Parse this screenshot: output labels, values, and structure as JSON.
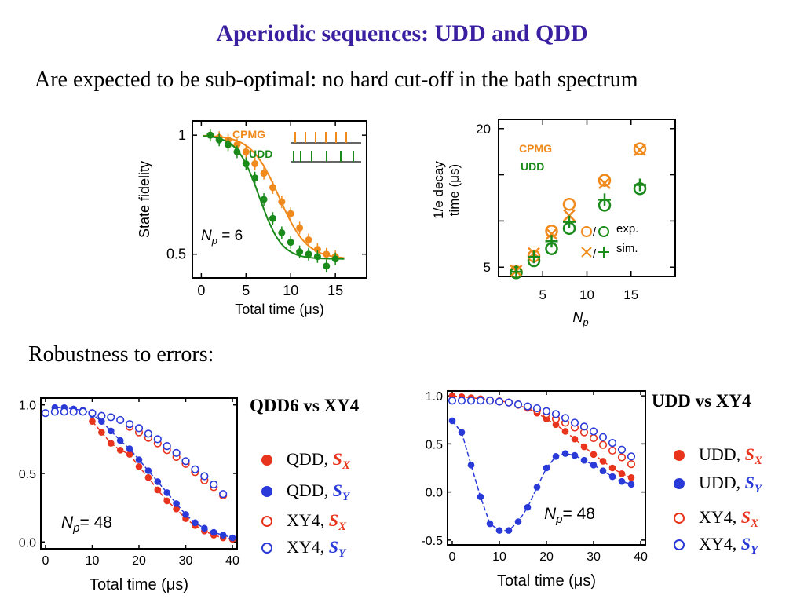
{
  "slide": {
    "title": "Aperiodic sequences: UDD and QDD",
    "subtitle": "Are expected to be sub-optimal: no hard cut-off in the bath spectrum",
    "section": "Robustness to errors:",
    "colors": {
      "title": "#3a1fa0",
      "orange": "#f08a1c",
      "green": "#1a8a1a",
      "red": "#e8341c",
      "blue": "#2a3ad8"
    }
  },
  "chart_data": [
    {
      "id": "fidelity",
      "type": "scatter",
      "xlabel": "Total time (μs)",
      "ylabel": "State fidelity",
      "xlim": [
        -1,
        18.5
      ],
      "ylim": [
        0.4,
        1.06
      ],
      "xticks": [
        "0",
        "5",
        "10",
        "15"
      ],
      "yticks": [
        "1",
        "0.5"
      ],
      "ytick_values": [
        1,
        0.5
      ],
      "annotation": "Np = 6",
      "legend": [
        "CPMG",
        "UDD"
      ],
      "series": [
        {
          "name": "CPMG",
          "color": "#f08a1c",
          "x": [
            1,
            2,
            3,
            4,
            5,
            6,
            7,
            8,
            9,
            10,
            11,
            12,
            13,
            14,
            15
          ],
          "y": [
            1.0,
            0.99,
            0.98,
            0.96,
            0.93,
            0.88,
            0.84,
            0.78,
            0.72,
            0.67,
            0.61,
            0.56,
            0.52,
            0.5,
            0.49
          ]
        },
        {
          "name": "UDD",
          "color": "#1a8a1a",
          "x": [
            1,
            2,
            3,
            4,
            5,
            6,
            7,
            8,
            9,
            10,
            11,
            12,
            13,
            14,
            15
          ],
          "y": [
            1.0,
            0.98,
            0.96,
            0.93,
            0.88,
            0.82,
            0.73,
            0.65,
            0.59,
            0.55,
            0.51,
            0.5,
            0.49,
            0.45,
            0.48
          ]
        }
      ]
    },
    {
      "id": "decay",
      "type": "scatter",
      "xlabel": "Np",
      "ylabel_line1": "1/e decay",
      "ylabel_line2": "time (μs)",
      "xlim": [
        0,
        20
      ],
      "ylim": [
        4,
        21
      ],
      "xticks": [
        "5",
        "10",
        "15"
      ],
      "yticks": [
        "20",
        "5"
      ],
      "legend_labels": [
        "CPMG",
        "UDD"
      ],
      "legend_exp": "exp.",
      "legend_sim": "sim.",
      "series": [
        {
          "name": "CPMG exp.",
          "color": "#f08a1c",
          "marker": "circle",
          "x": [
            2,
            4,
            6,
            8,
            12,
            16
          ],
          "y": [
            4.5,
            6.2,
            8.9,
            11.8,
            14.4,
            17.8
          ]
        },
        {
          "name": "UDD exp.",
          "color": "#1a8a1a",
          "marker": "circle",
          "x": [
            2,
            4,
            6,
            8,
            12,
            16
          ],
          "y": [
            4.4,
            5.7,
            7.0,
            9.2,
            11.7,
            13.5
          ]
        },
        {
          "name": "CPMG sim.",
          "color": "#f08a1c",
          "marker": "x",
          "x": [
            2,
            4,
            6,
            8,
            12,
            16
          ],
          "y": [
            4.6,
            6.5,
            8.6,
            10.6,
            14.1,
            17.7
          ]
        },
        {
          "name": "UDD sim.",
          "color": "#1a8a1a",
          "marker": "plus",
          "x": [
            2,
            4,
            6,
            8,
            12,
            16
          ],
          "y": [
            4.5,
            6.1,
            7.8,
            9.9,
            12.3,
            13.9
          ]
        }
      ]
    },
    {
      "id": "qdd",
      "type": "scatter",
      "title": "QDD6 vs XY4",
      "xlabel": "Total time (μs)",
      "xlim": [
        -1,
        41
      ],
      "ylim": [
        -0.05,
        1.05
      ],
      "xticks": [
        "0",
        "10",
        "20",
        "30",
        "40"
      ],
      "yticks": [
        "1.0",
        "0.5",
        "0.0"
      ],
      "ytick_values": [
        1,
        0.5,
        0
      ],
      "annotation": "Np= 48",
      "series": [
        {
          "name": "QDD, SX",
          "color": "#e8341c",
          "filled": true,
          "x": [
            10,
            12,
            14,
            16,
            18,
            20,
            22,
            24,
            26,
            28,
            30,
            32,
            34,
            36,
            38,
            40
          ],
          "y": [
            0.88,
            0.8,
            0.72,
            0.67,
            0.64,
            0.55,
            0.47,
            0.38,
            0.3,
            0.24,
            0.17,
            0.12,
            0.08,
            0.05,
            0.03,
            0.02
          ]
        },
        {
          "name": "QDD, SY",
          "color": "#2a3ad8",
          "filled": true,
          "x": [
            2,
            4,
            6,
            8,
            10,
            12,
            14,
            16,
            18,
            20,
            22,
            24,
            26,
            28,
            30,
            32,
            34,
            36,
            38,
            40
          ],
          "y": [
            0.98,
            0.98,
            0.97,
            0.96,
            0.93,
            0.88,
            0.81,
            0.74,
            0.68,
            0.6,
            0.52,
            0.44,
            0.36,
            0.28,
            0.2,
            0.14,
            0.1,
            0.07,
            0.05,
            0.03
          ]
        },
        {
          "name": "XY4, SX",
          "color": "#e8341c",
          "filled": false,
          "x": [
            18,
            20,
            22,
            24,
            26,
            28,
            30,
            32,
            34,
            36,
            38
          ],
          "y": [
            0.84,
            0.8,
            0.76,
            0.72,
            0.67,
            0.62,
            0.57,
            0.51,
            0.45,
            0.4,
            0.34
          ]
        },
        {
          "name": "XY4, SY",
          "color": "#2a3ad8",
          "filled": false,
          "x": [
            0,
            2,
            4,
            6,
            8,
            10,
            12,
            14,
            16,
            18,
            20,
            22,
            24,
            26,
            28,
            30,
            32,
            34,
            36,
            38
          ],
          "y": [
            0.94,
            0.95,
            0.95,
            0.95,
            0.95,
            0.94,
            0.92,
            0.91,
            0.89,
            0.86,
            0.83,
            0.79,
            0.75,
            0.7,
            0.65,
            0.59,
            0.53,
            0.48,
            0.42,
            0.35
          ]
        }
      ]
    },
    {
      "id": "udd",
      "type": "scatter",
      "title": "UDD vs XY4",
      "xlabel": "Total time (μs)",
      "xlim": [
        -1,
        41
      ],
      "ylim": [
        -0.55,
        1.05
      ],
      "xticks": [
        "0",
        "10",
        "20",
        "30",
        "40"
      ],
      "yticks": [
        "1.0",
        "0.5",
        "0.0",
        "-0.5"
      ],
      "ytick_values": [
        1,
        0.5,
        0,
        -0.5
      ],
      "annotation": "Np= 48",
      "series": [
        {
          "name": "UDD, SX",
          "color": "#e8341c",
          "filled": true,
          "x": [
            0,
            2,
            4,
            6,
            8,
            10,
            12,
            14,
            16,
            18,
            20,
            22,
            24,
            26,
            28,
            30,
            32,
            34,
            36,
            38
          ],
          "y": [
            1.0,
            0.99,
            0.98,
            0.97,
            0.96,
            0.95,
            0.93,
            0.9,
            0.87,
            0.82,
            0.76,
            0.7,
            0.63,
            0.55,
            0.47,
            0.39,
            0.32,
            0.25,
            0.19,
            0.15
          ]
        },
        {
          "name": "UDD, SY",
          "color": "#2a3ad8",
          "filled": true,
          "x": [
            0,
            2,
            4,
            6,
            8,
            10,
            12,
            14,
            16,
            18,
            20,
            22,
            24,
            26,
            28,
            30,
            32,
            34,
            36,
            38
          ],
          "y": [
            0.74,
            0.62,
            0.28,
            -0.05,
            -0.33,
            -0.4,
            -0.4,
            -0.31,
            -0.16,
            0.05,
            0.25,
            0.37,
            0.4,
            0.38,
            0.33,
            0.28,
            0.22,
            0.16,
            0.11,
            0.08
          ]
        },
        {
          "name": "XY4, SX",
          "color": "#e8341c",
          "filled": false,
          "x": [
            8,
            10,
            12,
            14,
            16,
            18,
            20,
            22,
            24,
            26,
            28,
            30,
            32,
            34,
            36,
            38
          ],
          "y": [
            0.95,
            0.94,
            0.93,
            0.91,
            0.88,
            0.85,
            0.81,
            0.76,
            0.72,
            0.67,
            0.62,
            0.56,
            0.49,
            0.43,
            0.36,
            0.29
          ]
        },
        {
          "name": "XY4, SY",
          "color": "#2a3ad8",
          "filled": false,
          "x": [
            0,
            2,
            4,
            6,
            8,
            10,
            12,
            14,
            16,
            18,
            20,
            22,
            24,
            26,
            28,
            30,
            32,
            34,
            36,
            38
          ],
          "y": [
            0.95,
            0.95,
            0.95,
            0.95,
            0.95,
            0.94,
            0.93,
            0.91,
            0.89,
            0.87,
            0.84,
            0.81,
            0.77,
            0.72,
            0.68,
            0.63,
            0.57,
            0.51,
            0.44,
            0.37
          ]
        }
      ]
    }
  ],
  "legend_qdd": [
    {
      "label": "QDD,",
      "s": "S",
      "sub": "X",
      "color": "#e8341c",
      "filled": true
    },
    {
      "label": "QDD,",
      "s": "S",
      "sub": "Y",
      "color": "#2a3ad8",
      "filled": true
    },
    {
      "label": "XY4,",
      "s": "S",
      "sub": "X",
      "color": "#e8341c",
      "filled": false
    },
    {
      "label": "XY4,",
      "s": "S",
      "sub": "Y",
      "color": "#2a3ad8",
      "filled": false
    }
  ],
  "legend_udd": [
    {
      "label": "UDD,",
      "s": "S",
      "sub": "X",
      "color": "#e8341c",
      "filled": true
    },
    {
      "label": "UDD,",
      "s": "S",
      "sub": "Y",
      "color": "#2a3ad8",
      "filled": true
    },
    {
      "label": "XY4,",
      "s": "S",
      "sub": "X",
      "color": "#e8341c",
      "filled": false
    },
    {
      "label": "XY4,",
      "s": "S",
      "sub": "Y",
      "color": "#2a3ad8",
      "filled": false
    }
  ]
}
